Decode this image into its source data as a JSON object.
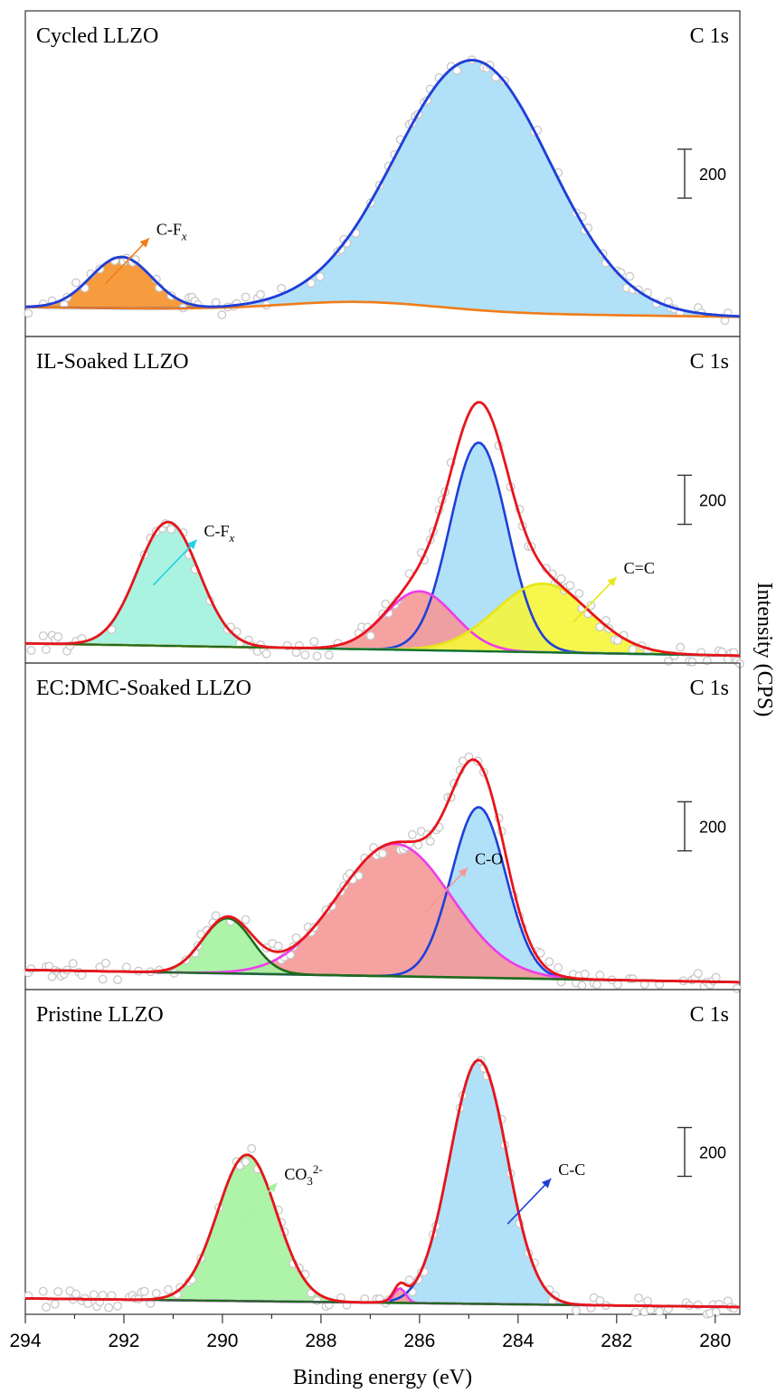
{
  "chart_data": {
    "type": "line",
    "xlabel": "Binding energy (eV)",
    "ylabel": "Intensity (CPS)",
    "xlim": [
      294,
      279.5
    ],
    "x_reversed": true,
    "x_ticks": [
      294,
      292,
      290,
      288,
      286,
      284,
      282,
      280
    ],
    "scale_bar_value": "200",
    "colors": {
      "envelope": "#e8151b",
      "c_c": "#1f3fd9",
      "c_c_fill": "#a9def7",
      "c_o": "#ee3bea",
      "c_o_fill": "#f59897",
      "co3": "#1f6b1c",
      "co3_fill": "#a4f3a0",
      "cfx_orange": "#f07d1a",
      "cfx_orange_fill": "#f5912a",
      "cfx_cyan": "#1fd2e6",
      "cfx_cyan_fill": "#a2f2de",
      "c_eq_c": "#e6e61a",
      "c_eq_c_fill": "#f5f53a",
      "data_points": "#c8c8c8"
    },
    "panels": [
      {
        "name": "Cycled LLZO",
        "core_level": "C 1s",
        "ylim": [
          -60,
          1160
        ],
        "background": {
          "type": "bump",
          "left": 60,
          "right": 20,
          "center": 287.2,
          "amp": 40,
          "width": 1.6
        },
        "peaks": [
          {
            "label": "C-C",
            "center": 284.9,
            "height": 1020,
            "width": 1.55,
            "color": "c_c",
            "fill": "c_c_fill"
          },
          {
            "label": "C-Fx",
            "center": 292.05,
            "height": 210,
            "width": 0.62,
            "color": "cfx_orange",
            "fill": "cfx_orange_fill"
          }
        ],
        "envelope_color": "c_c",
        "bg_color": "cfx_orange",
        "annotations": [
          {
            "text": "C-F",
            "sub": "x",
            "peak": "C-Fx",
            "color": "cfx_orange"
          }
        ]
      },
      {
        "name": "IL-Soaked LLZO",
        "core_level": "C 1s",
        "ylim": [
          -60,
          1160
        ],
        "background": {
          "type": "linear",
          "left": 20,
          "right": -30
        },
        "peaks": [
          {
            "label": "C-C",
            "center": 284.8,
            "height": 850,
            "width": 0.58,
            "color": "c_c",
            "fill": "c_c_fill"
          },
          {
            "label": "C-O",
            "center": 286.0,
            "height": 240,
            "width": 0.7,
            "color": "c_o",
            "fill": "c_o_fill"
          },
          {
            "label": "C=C",
            "center": 283.5,
            "height": 280,
            "width": 0.95,
            "color": "c_eq_c",
            "fill": "c_eq_c_fill"
          },
          {
            "label": "C-Fx",
            "center": 291.1,
            "height": 505,
            "width": 0.62,
            "color": "cfx_cyan",
            "fill": "cfx_cyan_fill"
          }
        ],
        "envelope_color": "envelope",
        "annotations": [
          {
            "text": "C-F",
            "sub": "x",
            "peak": "C-Fx",
            "color": "cfx_cyan"
          },
          {
            "text": "C=C",
            "sub": "",
            "peak": "C=C",
            "color": "c_eq_c"
          }
        ]
      },
      {
        "name": "EC:DMC-Soaked LLZO",
        "core_level": "C 1s",
        "ylim": [
          -60,
          1160
        ],
        "background": {
          "type": "linear",
          "left": 20,
          "right": -30
        },
        "peaks": [
          {
            "label": "C-C",
            "center": 284.8,
            "height": 695,
            "width": 0.55,
            "color": "c_c",
            "fill": "c_c_fill"
          },
          {
            "label": "C-O",
            "center": 286.5,
            "height": 540,
            "width": 1.15,
            "color": "c_o",
            "fill": "c_o_fill"
          },
          {
            "label": "CO3",
            "center": 289.9,
            "height": 225,
            "width": 0.5,
            "color": "co3",
            "fill": "co3_fill"
          }
        ],
        "envelope_color": "envelope",
        "annotations": [
          {
            "text": "C-O",
            "sub": "",
            "peak": "C-O",
            "color": "c_o_fill"
          }
        ]
      },
      {
        "name": "Pristine  LLZO",
        "core_level": "C 1s",
        "ylim": [
          -60,
          1160
        ],
        "background": {
          "type": "linear",
          "left": 5,
          "right": -30
        },
        "peaks": [
          {
            "label": "C-C",
            "center": 284.8,
            "height": 1000,
            "width": 0.58,
            "color": "c_c",
            "fill": "c_c_fill"
          },
          {
            "label": "CO3",
            "center": 289.5,
            "height": 600,
            "width": 0.6,
            "color": "co3",
            "fill": "co3_fill"
          },
          {
            "label": "minor",
            "center": 286.4,
            "height": 60,
            "width": 0.12,
            "color": "c_o",
            "fill": "c_o_fill"
          }
        ],
        "envelope_color": "envelope",
        "annotations": [
          {
            "text": "CO",
            "sub": "3",
            "sup": "2-",
            "peak": "CO3",
            "color": "co3_fill"
          },
          {
            "text": "C-C",
            "sub": "",
            "peak": "C-C",
            "color": "c_c"
          }
        ]
      }
    ]
  }
}
